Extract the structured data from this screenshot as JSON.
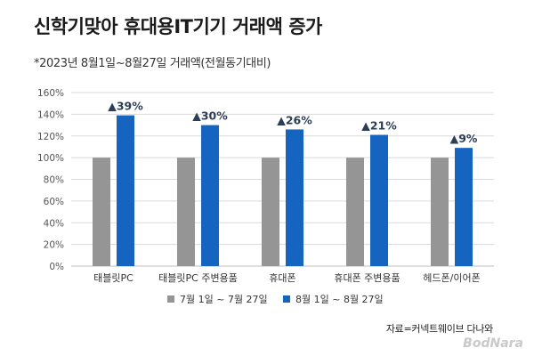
{
  "header": {
    "title": "신학기맞아 휴대용IT기기 거래액 증가",
    "subtitle": "*2023년 8월1일~8월27일 거래액(전월동기대비)"
  },
  "footer": {
    "source": "자료=커넥트웨이브 다나와",
    "watermark": "BodNara"
  },
  "colors": {
    "series_prev": "#959595",
    "series_curr": "#1565c0",
    "label": "#2c3e56",
    "grid": "#d9d9d9"
  },
  "chart_data": {
    "type": "bar",
    "categories": [
      "태블릿PC",
      "태블릿PC 주변용품",
      "휴대폰",
      "휴대폰 주변용품",
      "헤드폰/이어폰"
    ],
    "series": [
      {
        "name": "7월 1일 ~ 7월 27일",
        "values": [
          100,
          100,
          100,
          100,
          100
        ]
      },
      {
        "name": "8월 1일 ~ 8월 27일",
        "values": [
          139,
          130,
          126,
          121,
          109
        ]
      }
    ],
    "data_labels": [
      "▲39%",
      "▲30%",
      "▲26%",
      "▲21%",
      "▲9%"
    ],
    "y_ticks": [
      "0%",
      "20%",
      "40%",
      "60%",
      "80%",
      "100%",
      "120%",
      "140%",
      "160%"
    ],
    "ylim": [
      0,
      160
    ],
    "grid": true,
    "legend_position": "bottom",
    "title": "신학기맞아 휴대용IT기기 거래액 증가",
    "xlabel": "",
    "ylabel": ""
  }
}
